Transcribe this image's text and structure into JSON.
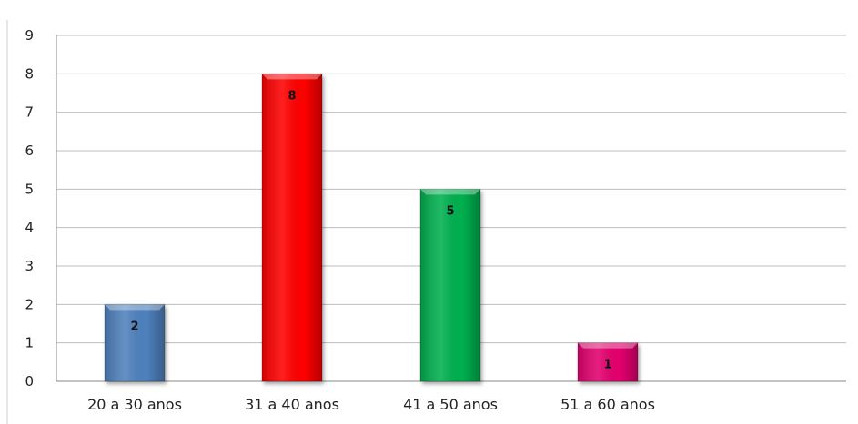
{
  "chart_data": {
    "type": "bar",
    "categories": [
      "20 a 30 anos",
      "31 a 40 anos",
      "41 a 50 anos",
      "51 a 60 anos"
    ],
    "values": [
      2,
      8,
      5,
      1
    ],
    "data_labels": [
      "2",
      "8",
      "5",
      "1"
    ],
    "ylim": [
      0,
      9
    ],
    "y_ticks": [
      "0",
      "1",
      "2",
      "3",
      "4",
      "5",
      "6",
      "7",
      "8",
      "9"
    ],
    "grid": true,
    "legend": "none",
    "bar_colors": [
      "#4f81bd",
      "#ff0000",
      "#00b050",
      "#e4006e"
    ]
  }
}
